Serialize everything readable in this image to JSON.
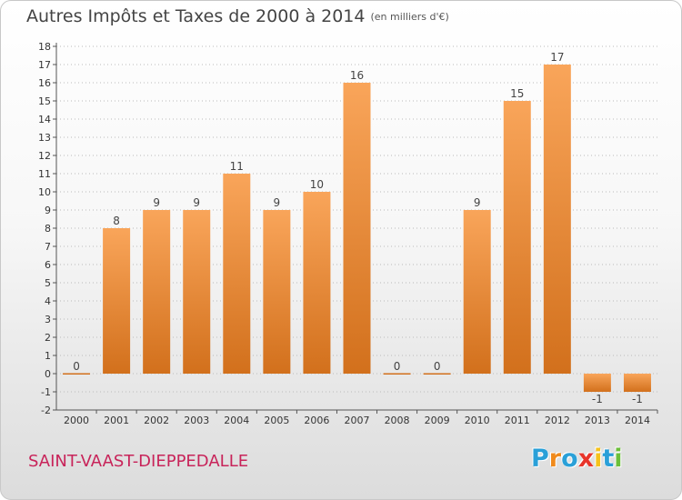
{
  "header": {
    "title": "Autres Impôts et Taxes de 2000 à 2014",
    "subtitle": "(en milliers d'€)"
  },
  "footer": {
    "commune": "SAINT-VAAST-DIEPPEDALLE",
    "logo_letters": [
      "P",
      "r",
      "o",
      "x",
      "i",
      "t",
      "i"
    ],
    "logo_colors": [
      "#2aa0d8",
      "#f08a1c",
      "#2aa0d8",
      "#e8342a",
      "#f5c21b",
      "#2aa0d8",
      "#6bbf3a"
    ]
  },
  "colors": {
    "bar_top": "#f9a55a",
    "bar_bottom": "#d2701c",
    "axis": "#555555",
    "grid": "#bbbbbb"
  },
  "chart_data": {
    "type": "bar",
    "title": "Autres Impôts et Taxes de 2000 à 2014",
    "subtitle": "(en milliers d'€)",
    "categories": [
      "2000",
      "2001",
      "2002",
      "2003",
      "2004",
      "2005",
      "2006",
      "2007",
      "2008",
      "2009",
      "2010",
      "2011",
      "2012",
      "2013",
      "2014"
    ],
    "values": [
      0,
      8,
      9,
      9,
      11,
      9,
      10,
      16,
      0,
      0,
      9,
      15,
      17,
      -1,
      -1
    ],
    "data_labels": [
      "0",
      "8",
      "9",
      "9",
      "11",
      "9",
      "10",
      "16",
      "0",
      "0",
      "9",
      "15",
      "17",
      "-1",
      "-1"
    ],
    "ylim": [
      -2,
      18
    ],
    "yticks": [
      "-2",
      "-1",
      "0",
      "1",
      "2",
      "3",
      "4",
      "5",
      "6",
      "7",
      "8",
      "9",
      "10",
      "11",
      "12",
      "13",
      "14",
      "15",
      "16",
      "17",
      "18"
    ],
    "grid": true,
    "legend": "none"
  }
}
